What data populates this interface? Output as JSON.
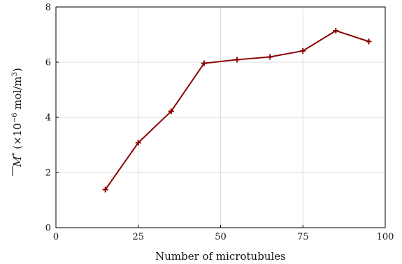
{
  "chart_data": {
    "type": "line",
    "xlabel": "Number of microtubules",
    "ylabel": "M* (×10⁻⁶ mol/m³)",
    "ylabel_parts": {
      "symbol": "M",
      "superscript_star": "*",
      "prefix": " (×10",
      "exponent": "−6",
      "unit": " mol/m",
      "unit_exponent": "3",
      "suffix": ")"
    },
    "xlim": [
      0,
      100
    ],
    "ylim": [
      0,
      8
    ],
    "x_ticks": [
      0,
      25,
      50,
      75,
      100
    ],
    "y_ticks": [
      0,
      2,
      4,
      6,
      8
    ],
    "grid": true,
    "marker": "plus",
    "color": "#8b0000",
    "series": [
      {
        "x": [
          15,
          25,
          35,
          45,
          55,
          65,
          75,
          85,
          95
        ],
        "values": [
          1.38,
          3.08,
          4.22,
          5.96,
          6.09,
          6.19,
          6.41,
          7.14,
          6.75
        ]
      }
    ]
  }
}
